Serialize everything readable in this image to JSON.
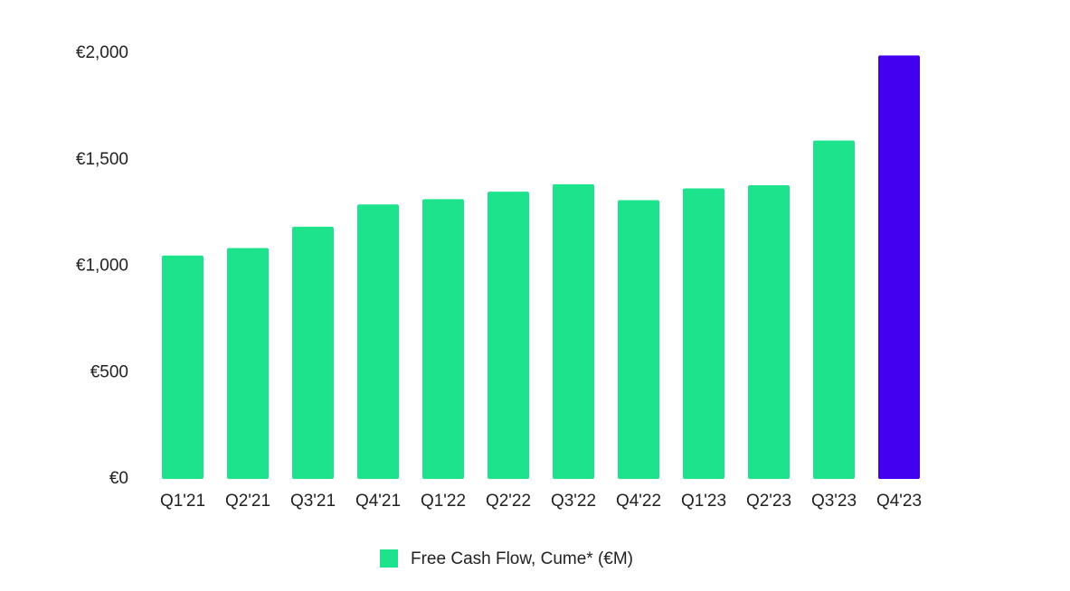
{
  "chart_data": {
    "type": "bar",
    "categories": [
      "Q1'21",
      "Q2'21",
      "Q3'21",
      "Q4'21",
      "Q1'22",
      "Q2'22",
      "Q3'22",
      "Q4'22",
      "Q1'23",
      "Q2'23",
      "Q3'23",
      "Q4'23"
    ],
    "series": [
      {
        "name": "Free Cash Flow, Cume* (€M)",
        "color": "#1de38c",
        "values": [
          1050,
          1085,
          1185,
          1290,
          1315,
          1350,
          1385,
          1310,
          1365,
          1380,
          1590,
          1990
        ],
        "bar_colors": [
          "#1de38c",
          "#1de38c",
          "#1de38c",
          "#1de38c",
          "#1de38c",
          "#1de38c",
          "#1de38c",
          "#1de38c",
          "#1de38c",
          "#1de38c",
          "#1de38c",
          "#4300f0"
        ]
      }
    ],
    "ylim": [
      0,
      2000
    ],
    "yticks": [
      {
        "value": 0,
        "label": "€0"
      },
      {
        "value": 500,
        "label": "€500"
      },
      {
        "value": 1000,
        "label": "€1,000"
      },
      {
        "value": 1500,
        "label": "€1,500"
      },
      {
        "value": 2000,
        "label": "€2,000"
      }
    ],
    "grid": false,
    "legend": "bottom"
  }
}
